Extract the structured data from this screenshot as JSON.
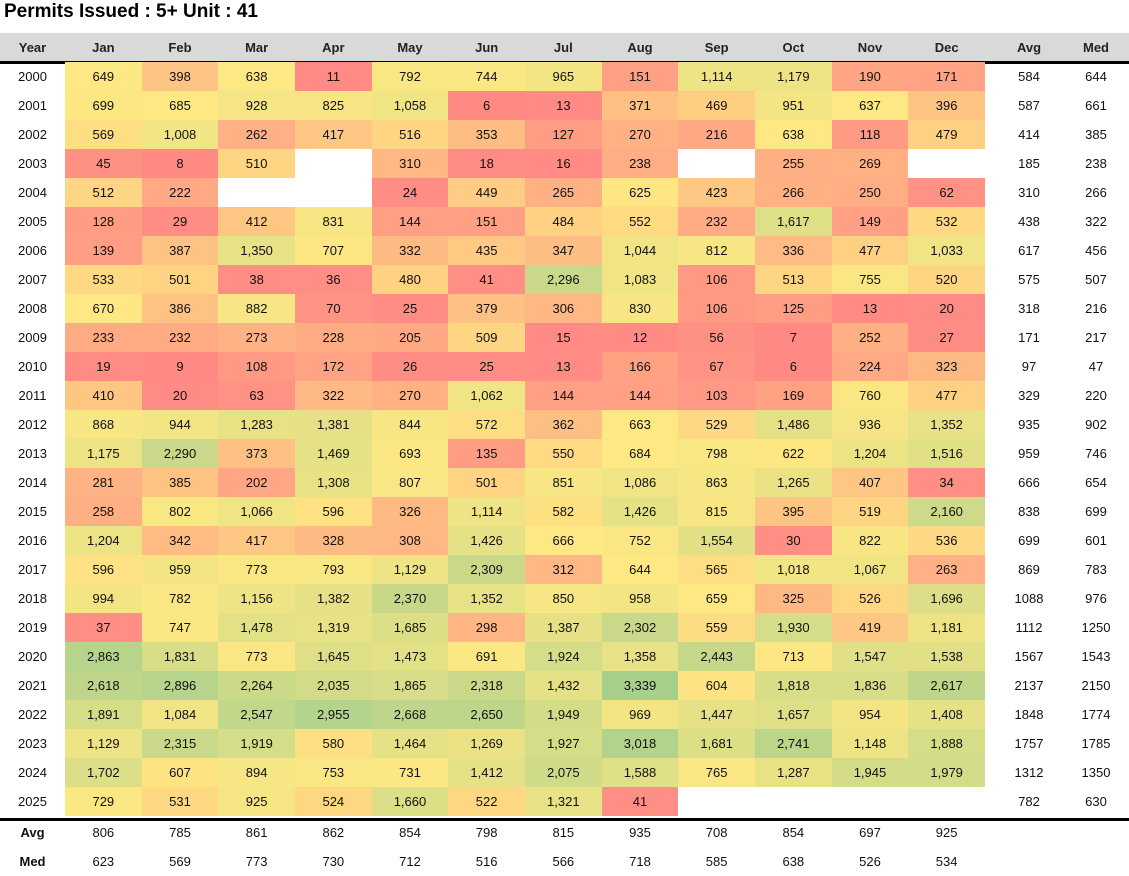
{
  "title": "Permits Issued : 5+ Unit : 41",
  "chart_data": {
    "type": "heatmap",
    "title": "Permits Issued : 5+ Unit : 41",
    "color_scale": {
      "low": "#FF8A84",
      "mid": "#FEE883",
      "high": "#A8D08D"
    },
    "columns": [
      "Year",
      "Jan",
      "Feb",
      "Mar",
      "Apr",
      "May",
      "Jun",
      "Jul",
      "Aug",
      "Sep",
      "Oct",
      "Nov",
      "Dec",
      "Avg",
      "Med"
    ],
    "rows": [
      {
        "year": "2000",
        "months": [
          "649",
          "398",
          "638",
          "11",
          "792",
          "744",
          "965",
          "151",
          "1,114",
          "1,179",
          "190",
          "171"
        ],
        "avg": "584",
        "med": "644"
      },
      {
        "year": "2001",
        "months": [
          "699",
          "685",
          "928",
          "825",
          "1,058",
          "6",
          "13",
          "371",
          "469",
          "951",
          "637",
          "396"
        ],
        "avg": "587",
        "med": "661"
      },
      {
        "year": "2002",
        "months": [
          "569",
          "1,008",
          "262",
          "417",
          "516",
          "353",
          "127",
          "270",
          "216",
          "638",
          "118",
          "479"
        ],
        "avg": "414",
        "med": "385"
      },
      {
        "year": "2003",
        "months": [
          "45",
          "8",
          "510",
          null,
          "310",
          "18",
          "16",
          "238",
          null,
          "255",
          "269",
          null
        ],
        "avg": "185",
        "med": "238"
      },
      {
        "year": "2004",
        "months": [
          "512",
          "222",
          null,
          null,
          "24",
          "449",
          "265",
          "625",
          "423",
          "266",
          "250",
          "62"
        ],
        "avg": "310",
        "med": "266"
      },
      {
        "year": "2005",
        "months": [
          "128",
          "29",
          "412",
          "831",
          "144",
          "151",
          "484",
          "552",
          "232",
          "1,617",
          "149",
          "532"
        ],
        "avg": "438",
        "med": "322"
      },
      {
        "year": "2006",
        "months": [
          "139",
          "387",
          "1,350",
          "707",
          "332",
          "435",
          "347",
          "1,044",
          "812",
          "336",
          "477",
          "1,033"
        ],
        "avg": "617",
        "med": "456"
      },
      {
        "year": "2007",
        "months": [
          "533",
          "501",
          "38",
          "36",
          "480",
          "41",
          "2,296",
          "1,083",
          "106",
          "513",
          "755",
          "520"
        ],
        "avg": "575",
        "med": "507"
      },
      {
        "year": "2008",
        "months": [
          "670",
          "386",
          "882",
          "70",
          "25",
          "379",
          "306",
          "830",
          "106",
          "125",
          "13",
          "20"
        ],
        "avg": "318",
        "med": "216"
      },
      {
        "year": "2009",
        "months": [
          "233",
          "232",
          "273",
          "228",
          "205",
          "509",
          "15",
          "12",
          "56",
          "7",
          "252",
          "27"
        ],
        "avg": "171",
        "med": "217"
      },
      {
        "year": "2010",
        "months": [
          "19",
          "9",
          "108",
          "172",
          "26",
          "25",
          "13",
          "166",
          "67",
          "6",
          "224",
          "323"
        ],
        "avg": "97",
        "med": "47"
      },
      {
        "year": "2011",
        "months": [
          "410",
          "20",
          "63",
          "322",
          "270",
          "1,062",
          "144",
          "144",
          "103",
          "169",
          "760",
          "477"
        ],
        "avg": "329",
        "med": "220"
      },
      {
        "year": "2012",
        "months": [
          "868",
          "944",
          "1,283",
          "1,381",
          "844",
          "572",
          "362",
          "663",
          "529",
          "1,486",
          "936",
          "1,352"
        ],
        "avg": "935",
        "med": "902"
      },
      {
        "year": "2013",
        "months": [
          "1,175",
          "2,290",
          "373",
          "1,469",
          "693",
          "135",
          "550",
          "684",
          "798",
          "622",
          "1,204",
          "1,516"
        ],
        "avg": "959",
        "med": "746"
      },
      {
        "year": "2014",
        "months": [
          "281",
          "385",
          "202",
          "1,308",
          "807",
          "501",
          "851",
          "1,086",
          "863",
          "1,265",
          "407",
          "34"
        ],
        "avg": "666",
        "med": "654"
      },
      {
        "year": "2015",
        "months": [
          "258",
          "802",
          "1,066",
          "596",
          "326",
          "1,114",
          "582",
          "1,426",
          "815",
          "395",
          "519",
          "2,160"
        ],
        "avg": "838",
        "med": "699"
      },
      {
        "year": "2016",
        "months": [
          "1,204",
          "342",
          "417",
          "328",
          "308",
          "1,426",
          "666",
          "752",
          "1,554",
          "30",
          "822",
          "536"
        ],
        "avg": "699",
        "med": "601"
      },
      {
        "year": "2017",
        "months": [
          "596",
          "959",
          "773",
          "793",
          "1,129",
          "2,309",
          "312",
          "644",
          "565",
          "1,018",
          "1,067",
          "263"
        ],
        "avg": "869",
        "med": "783"
      },
      {
        "year": "2018",
        "months": [
          "994",
          "782",
          "1,156",
          "1,382",
          "2,370",
          "1,352",
          "850",
          "958",
          "659",
          "325",
          "526",
          "1,696"
        ],
        "avg": "1088",
        "med": "976"
      },
      {
        "year": "2019",
        "months": [
          "37",
          "747",
          "1,478",
          "1,319",
          "1,685",
          "298",
          "1,387",
          "2,302",
          "559",
          "1,930",
          "419",
          "1,181"
        ],
        "avg": "1112",
        "med": "1250"
      },
      {
        "year": "2020",
        "months": [
          "2,863",
          "1,831",
          "773",
          "1,645",
          "1,473",
          "691",
          "1,924",
          "1,358",
          "2,443",
          "713",
          "1,547",
          "1,538"
        ],
        "avg": "1567",
        "med": "1543"
      },
      {
        "year": "2021",
        "months": [
          "2,618",
          "2,896",
          "2,264",
          "2,035",
          "1,865",
          "2,318",
          "1,432",
          "3,339",
          "604",
          "1,818",
          "1,836",
          "2,617"
        ],
        "avg": "2137",
        "med": "2150"
      },
      {
        "year": "2022",
        "months": [
          "1,891",
          "1,084",
          "2,547",
          "2,955",
          "2,668",
          "2,650",
          "1,949",
          "969",
          "1,447",
          "1,657",
          "954",
          "1,408"
        ],
        "avg": "1848",
        "med": "1774"
      },
      {
        "year": "2023",
        "months": [
          "1,129",
          "2,315",
          "1,919",
          "580",
          "1,464",
          "1,269",
          "1,927",
          "3,018",
          "1,681",
          "2,741",
          "1,148",
          "1,888"
        ],
        "avg": "1757",
        "med": "1785"
      },
      {
        "year": "2024",
        "months": [
          "1,702",
          "607",
          "894",
          "753",
          "731",
          "1,412",
          "2,075",
          "1,588",
          "765",
          "1,287",
          "1,945",
          "1,979"
        ],
        "avg": "1312",
        "med": "1350"
      },
      {
        "year": "2025",
        "months": [
          "729",
          "531",
          "925",
          "524",
          "1,660",
          "522",
          "1,321",
          "41",
          null,
          null,
          null,
          null
        ],
        "avg": "782",
        "med": "630"
      }
    ],
    "footer": [
      {
        "label": "Avg",
        "values": [
          "806",
          "785",
          "861",
          "862",
          "854",
          "798",
          "815",
          "935",
          "708",
          "854",
          "697",
          "925"
        ]
      },
      {
        "label": "Med",
        "values": [
          "623",
          "569",
          "773",
          "730",
          "712",
          "516",
          "566",
          "718",
          "585",
          "638",
          "526",
          "534"
        ]
      }
    ]
  }
}
